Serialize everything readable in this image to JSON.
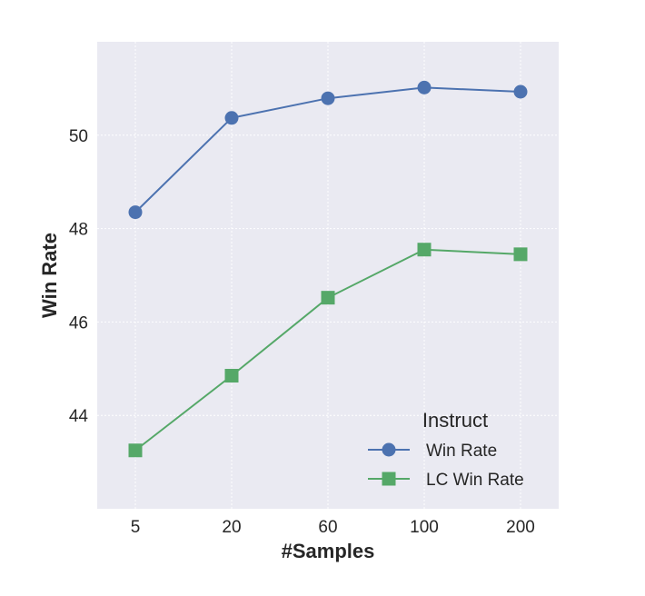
{
  "chart_data": {
    "type": "line",
    "title": "",
    "xlabel": "#Samples",
    "ylabel": "Win Rate",
    "categories": [
      "5",
      "20",
      "60",
      "100",
      "200"
    ],
    "ylim": [
      42.0,
      52.0
    ],
    "yticks": [
      44,
      46,
      48,
      50
    ],
    "grid": true,
    "legend": {
      "title": "Instruct",
      "position": "lower-right"
    },
    "series": [
      {
        "name": "Win Rate",
        "values": [
          48.35,
          50.37,
          50.79,
          51.02,
          50.93
        ],
        "color": "#4c72b0",
        "marker": "circle"
      },
      {
        "name": "LC Win Rate",
        "values": [
          43.25,
          44.85,
          46.52,
          47.55,
          47.45
        ],
        "color": "#55a868",
        "marker": "square"
      }
    ],
    "colors": {
      "plot_background": "#eaeaf2",
      "grid": "#ffffff",
      "text": "#262626"
    }
  }
}
